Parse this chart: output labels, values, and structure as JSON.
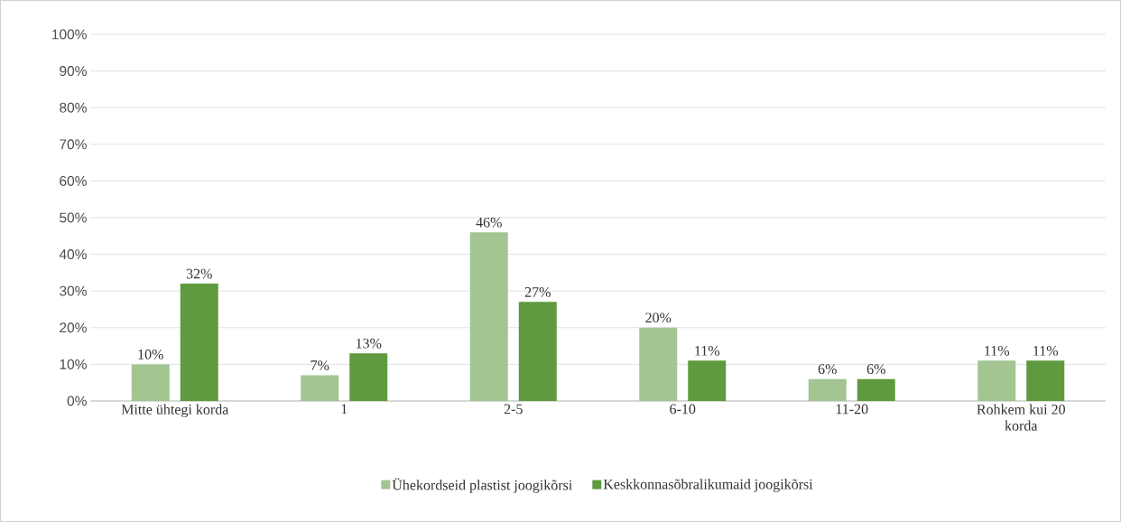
{
  "chart_data": {
    "type": "bar",
    "categories": [
      "Mitte ühtegi korda",
      "1",
      "2-5",
      "6-10",
      "11-20",
      "Rohkem kui 20 korda"
    ],
    "series": [
      {
        "name": "Ühekordseid plastist joogikõrsi",
        "color": "#a2c592",
        "values": [
          10,
          7,
          46,
          20,
          6,
          11
        ],
        "value_labels": [
          "10%",
          "7%",
          "46%",
          "20%",
          "6%",
          "11%"
        ]
      },
      {
        "name": "Keskkonnasõbralikumaid joogikõrsi",
        "color": "#5f9a3e",
        "values": [
          32,
          13,
          27,
          11,
          6,
          11
        ],
        "value_labels": [
          "32%",
          "13%",
          "27%",
          "11%",
          "6%",
          "11%"
        ]
      }
    ],
    "ylim": [
      0,
      100
    ],
    "yticks": [
      {
        "value": 0,
        "label": "0%"
      },
      {
        "value": 10,
        "label": "10%"
      },
      {
        "value": 20,
        "label": "20%"
      },
      {
        "value": 30,
        "label": "30%"
      },
      {
        "value": 40,
        "label": "40%"
      },
      {
        "value": 50,
        "label": "50%"
      },
      {
        "value": 60,
        "label": "60%"
      },
      {
        "value": 70,
        "label": "70%"
      },
      {
        "value": 80,
        "label": "80%"
      },
      {
        "value": 90,
        "label": "90%"
      },
      {
        "value": 100,
        "label": "100%"
      }
    ],
    "grid": "y",
    "legend": "bottom"
  }
}
